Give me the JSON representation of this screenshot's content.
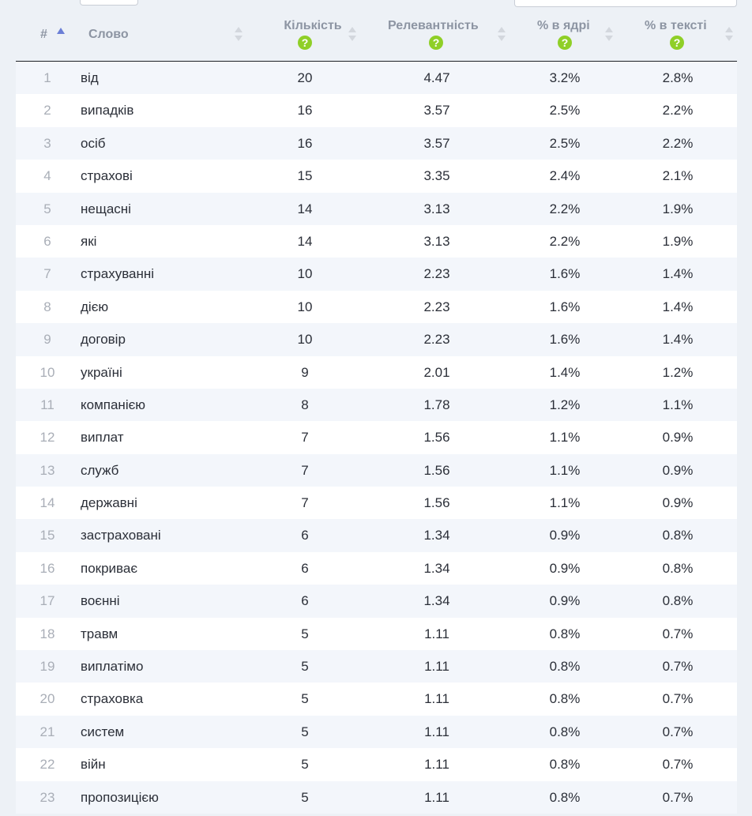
{
  "header": {
    "num": "#",
    "word": "Слово",
    "count": "Кількість",
    "relevance": "Релевантність",
    "core_pct": "% в ядрі",
    "text_pct": "% в тексті",
    "help_glyph": "?"
  },
  "colors": {
    "help_badge": "#8fcf27",
    "sort_active": "#6b7fd6",
    "row_alt": "#f3f6fb"
  },
  "rows": [
    {
      "n": "1",
      "word": "від",
      "count": "20",
      "rel": "4.47",
      "core": "3.2%",
      "text": "2.8%"
    },
    {
      "n": "2",
      "word": "випадків",
      "count": "16",
      "rel": "3.57",
      "core": "2.5%",
      "text": "2.2%"
    },
    {
      "n": "3",
      "word": "осіб",
      "count": "16",
      "rel": "3.57",
      "core": "2.5%",
      "text": "2.2%"
    },
    {
      "n": "4",
      "word": "страхові",
      "count": "15",
      "rel": "3.35",
      "core": "2.4%",
      "text": "2.1%"
    },
    {
      "n": "5",
      "word": "нещасні",
      "count": "14",
      "rel": "3.13",
      "core": "2.2%",
      "text": "1.9%"
    },
    {
      "n": "6",
      "word": "які",
      "count": "14",
      "rel": "3.13",
      "core": "2.2%",
      "text": "1.9%"
    },
    {
      "n": "7",
      "word": "страхуванні",
      "count": "10",
      "rel": "2.23",
      "core": "1.6%",
      "text": "1.4%"
    },
    {
      "n": "8",
      "word": "дією",
      "count": "10",
      "rel": "2.23",
      "core": "1.6%",
      "text": "1.4%"
    },
    {
      "n": "9",
      "word": "договір",
      "count": "10",
      "rel": "2.23",
      "core": "1.6%",
      "text": "1.4%"
    },
    {
      "n": "10",
      "word": "україні",
      "count": "9",
      "rel": "2.01",
      "core": "1.4%",
      "text": "1.2%"
    },
    {
      "n": "11",
      "word": "компанією",
      "count": "8",
      "rel": "1.78",
      "core": "1.2%",
      "text": "1.1%"
    },
    {
      "n": "12",
      "word": "виплат",
      "count": "7",
      "rel": "1.56",
      "core": "1.1%",
      "text": "0.9%"
    },
    {
      "n": "13",
      "word": "служб",
      "count": "7",
      "rel": "1.56",
      "core": "1.1%",
      "text": "0.9%"
    },
    {
      "n": "14",
      "word": "державні",
      "count": "7",
      "rel": "1.56",
      "core": "1.1%",
      "text": "0.9%"
    },
    {
      "n": "15",
      "word": "застраховані",
      "count": "6",
      "rel": "1.34",
      "core": "0.9%",
      "text": "0.8%"
    },
    {
      "n": "16",
      "word": "покриває",
      "count": "6",
      "rel": "1.34",
      "core": "0.9%",
      "text": "0.8%"
    },
    {
      "n": "17",
      "word": "воєнні",
      "count": "6",
      "rel": "1.34",
      "core": "0.9%",
      "text": "0.8%"
    },
    {
      "n": "18",
      "word": "травм",
      "count": "5",
      "rel": "1.11",
      "core": "0.8%",
      "text": "0.7%"
    },
    {
      "n": "19",
      "word": "виплатімо",
      "count": "5",
      "rel": "1.11",
      "core": "0.8%",
      "text": "0.7%"
    },
    {
      "n": "20",
      "word": "страховка",
      "count": "5",
      "rel": "1.11",
      "core": "0.8%",
      "text": "0.7%"
    },
    {
      "n": "21",
      "word": "систем",
      "count": "5",
      "rel": "1.11",
      "core": "0.8%",
      "text": "0.7%"
    },
    {
      "n": "22",
      "word": "війн",
      "count": "5",
      "rel": "1.11",
      "core": "0.8%",
      "text": "0.7%"
    },
    {
      "n": "23",
      "word": "пропозицією",
      "count": "5",
      "rel": "1.11",
      "core": "0.8%",
      "text": "0.7%"
    }
  ]
}
